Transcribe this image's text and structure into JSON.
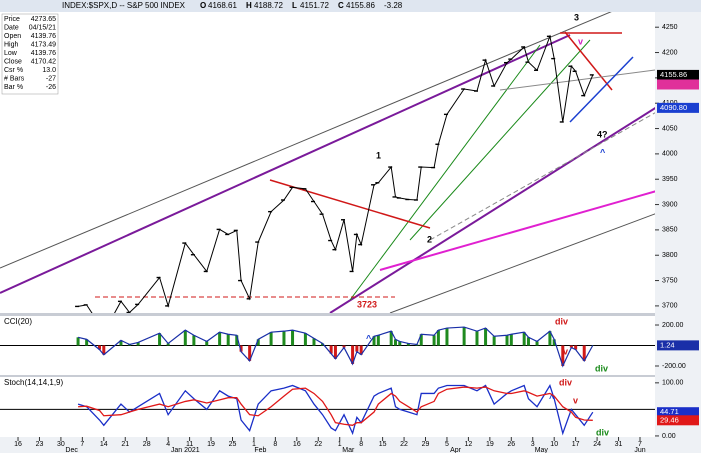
{
  "header": {
    "title": "INDEX:$SPX,D -- S&P 500 INDEX",
    "quote": [
      {
        "key": "O",
        "value": 4168.61
      },
      {
        "key": "H",
        "value": 4188.72
      },
      {
        "key": "L",
        "value": 4151.72
      },
      {
        "key": "C",
        "value": 4155.86
      },
      {
        "key": "",
        "value": -3.28
      }
    ]
  },
  "data_window": [
    {
      "key": "Price",
      "value": "4273.65"
    },
    {
      "key": "Date",
      "value": "04/15/21"
    },
    {
      "key": "Open",
      "value": "4139.76"
    },
    {
      "key": "High",
      "value": "4173.49"
    },
    {
      "key": "Low",
      "value": "4139.76"
    },
    {
      "key": "Close",
      "value": "4170.42"
    },
    {
      "key": "Csr %",
      "value": "13.0"
    },
    {
      "key": "# Bars",
      "value": "-27"
    },
    {
      "key": "Bar %",
      "value": "-26"
    }
  ],
  "annotations": [
    "1",
    "2",
    "3",
    "4?",
    "3723",
    "v",
    "^",
    "div",
    "v",
    "div",
    "^",
    "div",
    "div",
    "v",
    "^",
    "div"
  ],
  "x_axis": {
    "xlim": [
      -0.84,
      29.7
    ],
    "xticks": [
      {
        "value": 0,
        "label": "16"
      },
      {
        "value": 1,
        "label": "23"
      },
      {
        "value": 2,
        "label": "30"
      },
      {
        "value": 3,
        "label": "7"
      },
      {
        "value": 4,
        "label": "14"
      },
      {
        "value": 5,
        "label": "21"
      },
      {
        "value": 6,
        "label": "28"
      },
      {
        "value": 7,
        "label": "4"
      },
      {
        "value": 8,
        "label": "11"
      },
      {
        "value": 9,
        "label": "19"
      },
      {
        "value": 10,
        "label": "25"
      },
      {
        "value": 11,
        "label": "1"
      },
      {
        "value": 12,
        "label": "8"
      },
      {
        "value": 13,
        "label": "16"
      },
      {
        "value": 14,
        "label": "22"
      },
      {
        "value": 15,
        "label": "1"
      },
      {
        "value": 16,
        "label": "8"
      },
      {
        "value": 17,
        "label": "15"
      },
      {
        "value": 18,
        "label": "22"
      },
      {
        "value": 19,
        "label": "29"
      },
      {
        "value": 20,
        "label": "5"
      },
      {
        "value": 21,
        "label": "12"
      },
      {
        "value": 22,
        "label": "19"
      },
      {
        "value": 23,
        "label": "26"
      },
      {
        "value": 24,
        "label": "3"
      },
      {
        "value": 25,
        "label": "10"
      },
      {
        "value": 26,
        "label": "17"
      },
      {
        "value": 27,
        "label": "24"
      },
      {
        "value": 28,
        "label": "31"
      },
      {
        "value": 29,
        "label": "7"
      }
    ],
    "months": [
      {
        "value": 2.5,
        "label": "Dec"
      },
      {
        "value": 7.8,
        "label": "Jan 2021"
      },
      {
        "value": 11.3,
        "label": "Feb"
      },
      {
        "value": 15.4,
        "label": "Mar"
      },
      {
        "value": 20.4,
        "label": "Apr"
      },
      {
        "value": 24.4,
        "label": "May"
      },
      {
        "value": 29,
        "label": "Jun"
      }
    ],
    "x": [
      2.8,
      3.2,
      3.8,
      4.0,
      4.8,
      5.2,
      5.6,
      6.6,
      7.0,
      7.8,
      8.2,
      8.8,
      9.4,
      9.8,
      10.2,
      10.4,
      10.8,
      11.2,
      11.8,
      12.4,
      12.8,
      13.4,
      13.8,
      14.2,
      14.6,
      14.8,
      15.2,
      15.6,
      15.8,
      16.0,
      16.6,
      16.8,
      17.4,
      17.6,
      17.8,
      18.2,
      18.6,
      18.8,
      19.4,
      19.6,
      20.0,
      20.8,
      21.4,
      21.8,
      22.2,
      22.8,
      23.0,
      23.6,
      23.8,
      24.2,
      24.8,
      25.0,
      25.4,
      25.8,
      26.0,
      26.4,
      26.8
    ]
  },
  "chart_data": [
    {
      "type": "line",
      "color": "#000000",
      "values": [
        3699,
        3702,
        3663,
        3647,
        3709,
        3687,
        3703,
        3756,
        3700,
        3824,
        3801,
        3768,
        3851,
        3841,
        3849,
        3750,
        3714,
        3826,
        3886,
        3909,
        3934,
        3931,
        3906,
        3881,
        3829,
        3811,
        3870,
        3768,
        3841,
        3821,
        3939,
        3943,
        3974,
        3915,
        3913,
        3910,
        3909,
        3974,
        3973,
        4019,
        4078,
        4128,
        4124,
        4185,
        4134,
        4180,
        4187,
        4211,
        4181,
        4165,
        4232,
        4188,
        4063,
        4173,
        4163,
        4115,
        4155.86
      ],
      "ylim": [
        3686,
        4280
      ],
      "yticks": [
        3700,
        3750,
        3800,
        3850,
        3900,
        3950,
        4000,
        4050,
        4100,
        4150,
        4200,
        4250
      ],
      "badges": [
        {
          "value": 4136.92,
          "color": "#e0309a"
        },
        {
          "value": 4090.8,
          "label": "4090.80",
          "color": "#1a3fd0"
        }
      ]
    },
    {
      "type": "histogram-line",
      "title": "CCI(20)",
      "color": "#1a2fa8",
      "up_color": "#1f8a1f",
      "down_color": "#d01818",
      "values": [
        80,
        60,
        -40,
        -90,
        50,
        10,
        30,
        120,
        20,
        150,
        100,
        40,
        130,
        110,
        100,
        -60,
        -150,
        60,
        130,
        140,
        150,
        120,
        70,
        20,
        -80,
        -130,
        -20,
        -180,
        -60,
        -90,
        90,
        100,
        140,
        60,
        40,
        20,
        10,
        110,
        100,
        150,
        170,
        180,
        140,
        170,
        90,
        100,
        110,
        130,
        80,
        40,
        140,
        60,
        -200,
        -20,
        -40,
        -150,
        1.24
      ],
      "ylim": [
        -288,
        288
      ],
      "yticks": [
        {
          "value": 200,
          "label": "200.00"
        },
        {
          "value": -200,
          "label": "-200.00"
        }
      ],
      "reference": 0
    },
    {
      "type": "line",
      "title": "Stoch(14,14,1,9)",
      "series": [
        {
          "color": "#1a2fc8",
          "values": [
            60,
            55,
            30,
            20,
            60,
            45,
            55,
            80,
            40,
            85,
            70,
            50,
            85,
            75,
            70,
            30,
            10,
            60,
            85,
            90,
            95,
            85,
            60,
            40,
            15,
            10,
            40,
            5,
            35,
            25,
            75,
            80,
            90,
            55,
            50,
            45,
            40,
            80,
            80,
            90,
            95,
            95,
            85,
            95,
            60,
            80,
            85,
            95,
            70,
            55,
            95,
            70,
            5,
            50,
            40,
            20,
            44.71
          ]
        },
        {
          "color": "#e01818",
          "values": [
            55,
            56,
            48,
            38,
            40,
            45,
            50,
            60,
            55,
            65,
            68,
            62,
            68,
            72,
            72,
            60,
            40,
            38,
            55,
            75,
            88,
            90,
            80,
            65,
            40,
            25,
            22,
            20,
            25,
            25,
            45,
            60,
            80,
            75,
            65,
            55,
            45,
            55,
            65,
            80,
            88,
            92,
            90,
            92,
            85,
            80,
            80,
            85,
            82,
            75,
            80,
            75,
            55,
            45,
            35,
            30,
            29.46
          ]
        }
      ],
      "ylim": [
        -2,
        111
      ],
      "yticks": [
        {
          "value": 100,
          "label": "100.00"
        },
        {
          "value": 0,
          "label": "0.00"
        }
      ],
      "reference": 50
    }
  ]
}
